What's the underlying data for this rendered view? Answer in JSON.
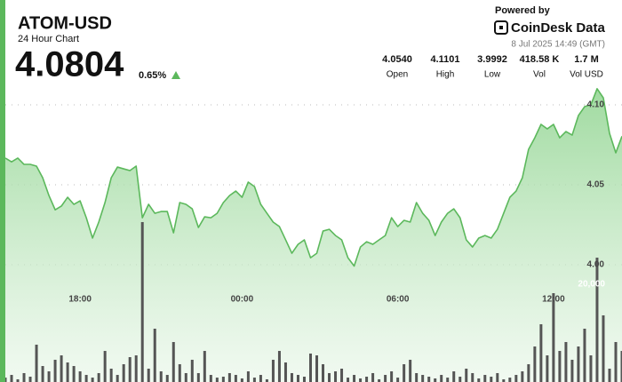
{
  "header": {
    "symbol": "ATOM-USD",
    "subtitle": "24 Hour Chart",
    "price": "4.0804",
    "change": "0.65%",
    "powered_by": "Powered by",
    "brand": "CoinDesk Data",
    "timestamp": "8 Jul 2025 14:49 (GMT)"
  },
  "stats": [
    {
      "value": "4.0540",
      "label": "Open"
    },
    {
      "value": "4.1101",
      "label": "High"
    },
    {
      "value": "3.9992",
      "label": "Low"
    },
    {
      "value": "418.58 K",
      "label": "Vol"
    },
    {
      "value": "1.7 M",
      "label": "Vol USD"
    }
  ],
  "chart_data": {
    "type": "line",
    "categories": [
      null,
      null,
      null,
      null,
      null,
      null,
      null,
      null,
      null,
      null,
      null,
      null,
      "18:00",
      null,
      null,
      null,
      null,
      null,
      null,
      null,
      null,
      null,
      null,
      null,
      null,
      null,
      null,
      null,
      null,
      null,
      null,
      null,
      null,
      null,
      null,
      null,
      null,
      null,
      "00:00",
      null,
      null,
      null,
      null,
      null,
      null,
      null,
      null,
      null,
      null,
      null,
      null,
      null,
      null,
      null,
      null,
      null,
      null,
      null,
      null,
      null,
      null,
      null,
      null,
      "06:00",
      null,
      null,
      null,
      null,
      null,
      null,
      null,
      null,
      null,
      null,
      null,
      null,
      null,
      null,
      null,
      null,
      null,
      null,
      null,
      null,
      null,
      null,
      null,
      null,
      "12:00",
      null,
      null,
      null,
      null,
      null,
      null,
      null,
      null,
      null,
      null,
      null
    ],
    "series": [
      {
        "color": "#5cb85c",
        "values": [
          4.0667,
          4.0644,
          4.0667,
          4.0628,
          4.0628,
          4.0617,
          4.0544,
          4.0433,
          4.0344,
          4.0367,
          4.0422,
          4.0378,
          4.04,
          4.0294,
          4.0167,
          4.0267,
          4.0389,
          4.0544,
          4.0611,
          4.06,
          4.0589,
          4.0617,
          4.0294,
          4.0378,
          4.0322,
          4.0333,
          4.0333,
          4.02,
          4.0389,
          4.0378,
          4.035,
          4.0233,
          4.03,
          4.0294,
          4.0322,
          4.0389,
          4.0433,
          4.0461,
          4.0422,
          4.0517,
          4.0489,
          4.0378,
          4.0322,
          4.0267,
          4.0239,
          4.0156,
          4.0072,
          4.0128,
          4.0156,
          4.0044,
          4.0072,
          4.0211,
          4.0222,
          4.0183,
          4.0156,
          4.0044,
          3.9992,
          4.0111,
          4.0144,
          4.0128,
          4.0156,
          4.0183,
          4.0294,
          4.0239,
          4.0278,
          4.0267,
          4.0389,
          4.0322,
          4.0278,
          4.0183,
          4.0267,
          4.0322,
          4.035,
          4.0294,
          4.0156,
          4.0111,
          4.0167,
          4.0183,
          4.0167,
          4.0222,
          4.0322,
          4.0422,
          4.0461,
          4.0544,
          4.0722,
          4.0794,
          4.0878,
          4.085,
          4.0878,
          4.0794,
          4.0833,
          4.0811,
          4.0933,
          4.0989,
          4.1,
          4.1101,
          4.1044,
          4.0822,
          4.07,
          4.0804
        ]
      },
      {
        "type": "bar",
        "axis": "y2",
        "color": "#555555",
        "values": [
          900,
          1450,
          550,
          1820,
          1090,
          7640,
          3270,
          2180,
          4550,
          5450,
          4000,
          3270,
          2180,
          1450,
          900,
          1820,
          6360,
          2730,
          1450,
          3640,
          5090,
          5450,
          32730,
          2730,
          10910,
          2180,
          1450,
          8180,
          3640,
          1820,
          4550,
          1820,
          6360,
          1450,
          900,
          1090,
          1820,
          1450,
          730,
          2180,
          900,
          1450,
          550,
          4550,
          6360,
          4000,
          1820,
          1450,
          1090,
          5820,
          5450,
          3640,
          1820,
          2180,
          2730,
          900,
          1450,
          730,
          1090,
          1820,
          550,
          1450,
          2180,
          900,
          3640,
          4550,
          1820,
          1450,
          1090,
          730,
          1450,
          900,
          2180,
          1090,
          2730,
          1820,
          730,
          1450,
          1090,
          1820,
          550,
          900,
          1450,
          2180,
          3640,
          7270,
          11820,
          5450,
          18180,
          6360,
          8180,
          4550,
          7270,
          10910,
          5450,
          25450,
          13640,
          2730,
          8180,
          6360
        ]
      }
    ],
    "ylim": [
      3.9267,
      4.1128
    ],
    "yticks": [
      {
        "value": 4.0,
        "label": "4.00"
      },
      {
        "value": 4.05,
        "label": "4.05"
      },
      {
        "value": 4.1,
        "label": "4.10"
      }
    ],
    "y2lim": [
      0,
      60909
    ],
    "y2ticks": [
      {
        "value": 20000,
        "label": "20,000"
      }
    ],
    "grid": true
  }
}
